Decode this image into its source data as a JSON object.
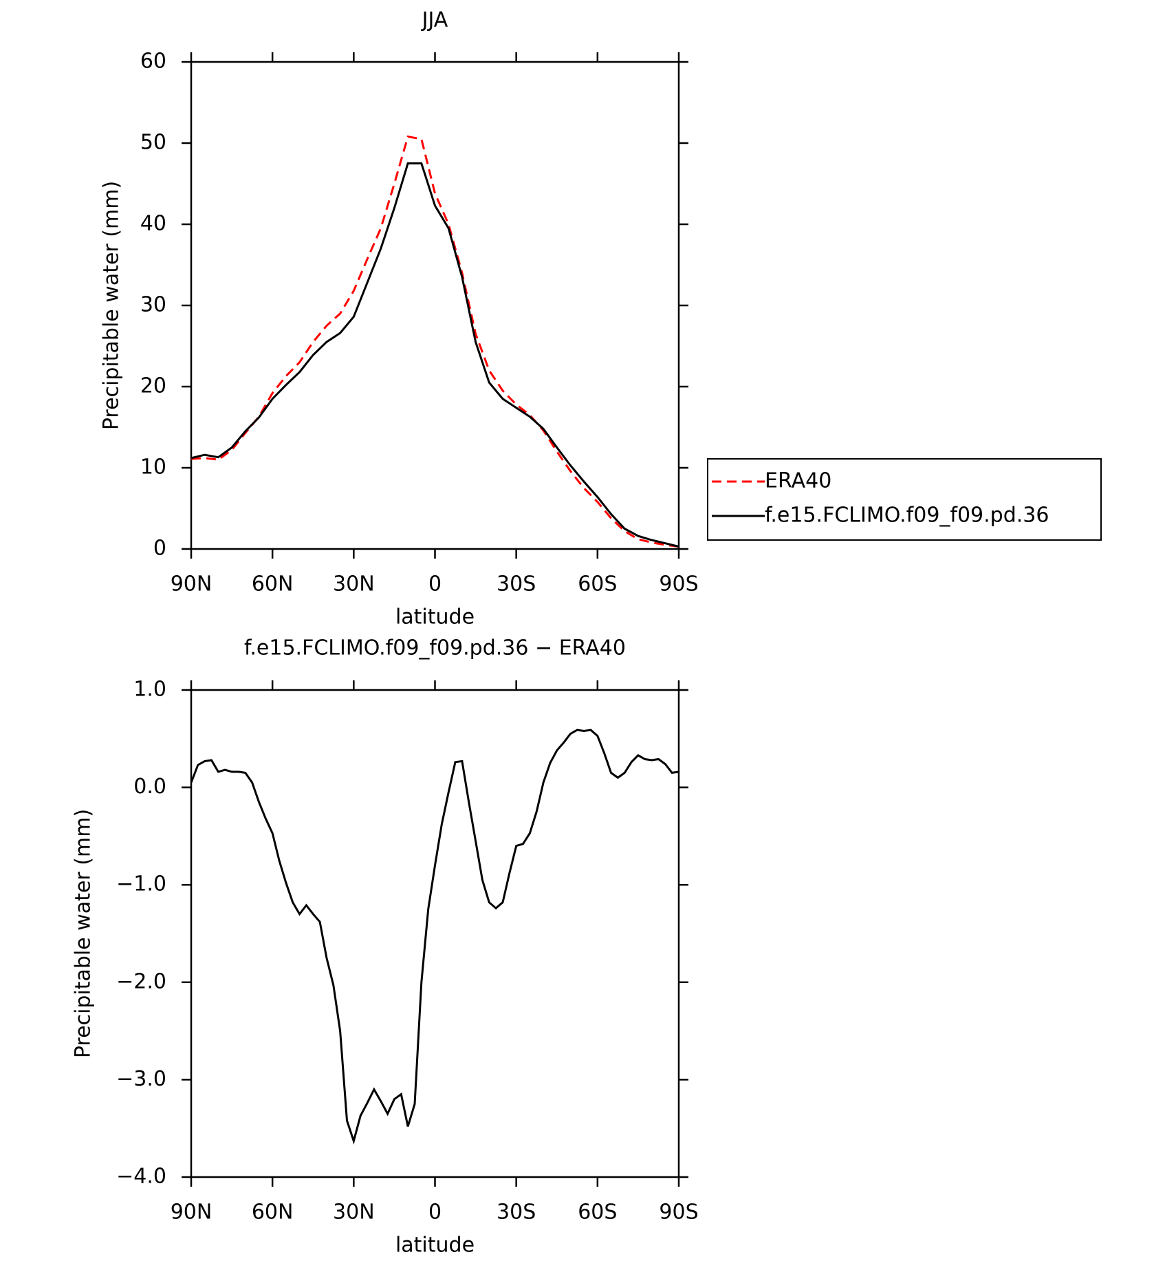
{
  "chart_data": [
    {
      "type": "line",
      "title": "JJA",
      "x_label": "latitude",
      "y_label": "Precipitable water (mm)",
      "x": [
        90,
        85,
        80,
        75,
        70,
        65,
        60,
        55,
        50,
        45,
        40,
        35,
        30,
        25,
        20,
        15,
        10,
        5,
        0,
        -5,
        -10,
        -15,
        -20,
        -25,
        -30,
        -35,
        -40,
        -45,
        -50,
        -55,
        -60,
        -65,
        -70,
        -75,
        -80,
        -85,
        -90
      ],
      "series": [
        {
          "name": "ERA40",
          "color": "#ff0000",
          "dash": "dashed",
          "values": [
            11.1,
            11.2,
            11.0,
            12.2,
            14.3,
            16.3,
            19.2,
            21.3,
            23.0,
            25.5,
            27.5,
            29.0,
            31.8,
            35.7,
            39.5,
            45,
            50.8,
            50.5,
            43.8,
            40,
            34,
            26.5,
            22,
            19.5,
            17.8,
            16.5,
            14.6,
            12.0,
            9.6,
            7.5,
            5.8,
            3.8,
            2.2,
            1.2,
            0.8,
            0.5,
            0.3
          ]
        },
        {
          "name": "f.e15.FCLIMO.f09_f09.pd.36",
          "color": "#000000",
          "dash": "solid",
          "values": [
            11.2,
            11.6,
            11.3,
            12.5,
            14.5,
            16.2,
            18.5,
            20.2,
            21.8,
            23.9,
            25.5,
            26.6,
            28.6,
            32.8,
            37,
            42,
            47.5,
            47.5,
            42.3,
            39.5,
            33.5,
            25.5,
            20.5,
            18.5,
            17.4,
            16.3,
            14.8,
            12.5,
            10.3,
            8.3,
            6.4,
            4.3,
            2.5,
            1.6,
            1.1,
            0.7,
            0.3
          ]
        }
      ],
      "xlim": [
        90,
        -90
      ],
      "xticks": [
        {
          "value": 90,
          "label": "90N"
        },
        {
          "value": 60,
          "label": "60N"
        },
        {
          "value": 30,
          "label": "30N"
        },
        0,
        {
          "value": -30,
          "label": "30S"
        },
        {
          "value": -60,
          "label": "60S"
        },
        {
          "value": -90,
          "label": "90S"
        }
      ],
      "ylim": [
        0,
        60
      ],
      "yticks": [
        0,
        10,
        20,
        30,
        40,
        50,
        60
      ],
      "legend": "right"
    },
    {
      "type": "line",
      "title": "f.e15.FCLIMO.f09_f09.pd.36 − ERA40",
      "x_label": "latitude",
      "y_label": "Precipitable water (mm)",
      "x": [
        90,
        87.5,
        85,
        82.5,
        80,
        77.5,
        75,
        72.5,
        70,
        67.5,
        65,
        62.5,
        60,
        57.5,
        55,
        52.5,
        50,
        47.5,
        45,
        42.5,
        40,
        37.5,
        35,
        32.5,
        30,
        27.5,
        25,
        22.5,
        20,
        17.5,
        15,
        12.5,
        10,
        7.5,
        5,
        2.5,
        0,
        -2.5,
        -5,
        -7.5,
        -10,
        -12.5,
        -15,
        -17.5,
        -20,
        -22.5,
        -25,
        -27.5,
        -30,
        -32.5,
        -35,
        -37.5,
        -40,
        -42.5,
        -45,
        -47.5,
        -50,
        -52.5,
        -55,
        -57.5,
        -60,
        -62.5,
        -65,
        -67.5,
        -70,
        -72.5,
        -75,
        -77.5,
        -80,
        -82.5,
        -85,
        -87.5,
        -90
      ],
      "series": [
        {
          "color": "#000000",
          "dash": "solid",
          "values": [
            0.05,
            0.23,
            0.27,
            0.28,
            0.16,
            0.18,
            0.16,
            0.16,
            0.15,
            0.05,
            -0.15,
            -0.32,
            -0.47,
            -0.75,
            -0.98,
            -1.18,
            -1.3,
            -1.21,
            -1.3,
            -1.38,
            -1.75,
            -2.03,
            -2.5,
            -3.42,
            -3.63,
            -3.37,
            -3.24,
            -3.1,
            -3.22,
            -3.35,
            -3.2,
            -3.15,
            -3.48,
            -3.25,
            -2.0,
            -1.25,
            -0.8,
            -0.38,
            -0.05,
            0.26,
            0.27,
            -0.15,
            -0.55,
            -0.95,
            -1.18,
            -1.24,
            -1.18,
            -0.88,
            -0.6,
            -0.58,
            -0.47,
            -0.25,
            0.05,
            0.25,
            0.38,
            0.46,
            0.55,
            0.59,
            0.58,
            0.59,
            0.53,
            0.35,
            0.15,
            0.1,
            0.15,
            0.26,
            0.33,
            0.29,
            0.28,
            0.29,
            0.24,
            0.15,
            0.16
          ]
        }
      ],
      "xlim": [
        90,
        -90
      ],
      "xticks": [
        {
          "value": 90,
          "label": "90N"
        },
        {
          "value": 60,
          "label": "60N"
        },
        {
          "value": 30,
          "label": "30N"
        },
        0,
        {
          "value": -30,
          "label": "30S"
        },
        {
          "value": -60,
          "label": "60S"
        },
        {
          "value": -90,
          "label": "90S"
        }
      ],
      "ylim": [
        -4,
        1
      ],
      "yticks": [
        {
          "value": -4,
          "label": "−4.0"
        },
        {
          "value": -3,
          "label": "−3.0"
        },
        {
          "value": -2,
          "label": "−2.0"
        },
        {
          "value": -1,
          "label": "−1.0"
        },
        {
          "value": 0,
          "label": "0.0"
        },
        {
          "value": 1,
          "label": "1.0"
        }
      ]
    }
  ]
}
